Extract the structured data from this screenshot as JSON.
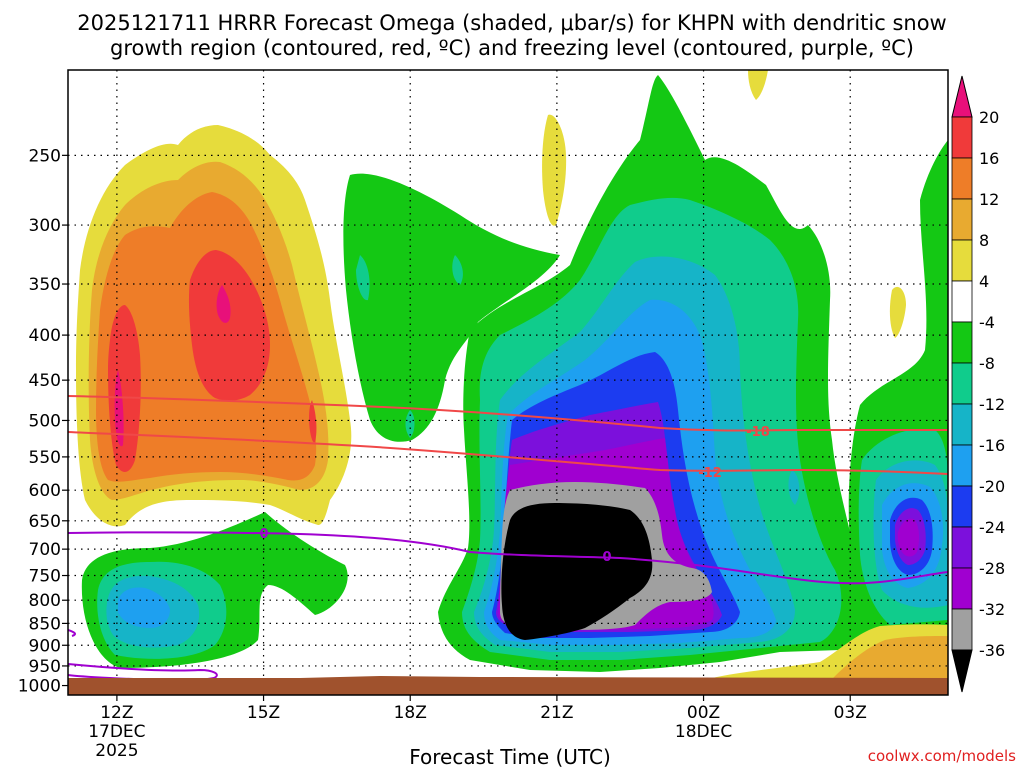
{
  "chart_data": {
    "type": "heatmap",
    "title_line1": "2025121711 HRRR Forecast Omega (shaded, μbar/s) for KHPN with dendritic snow",
    "title_line2": "growth region (contoured, red, ºC) and freezing level (contoured, purple, ºC)",
    "xlabel": "Forecast Time (UTC)",
    "credit": "coolwx.com/models",
    "x_ticks": [
      {
        "label": "12Z",
        "sub1": "17DEC",
        "sub2": "2025",
        "hour": 12
      },
      {
        "label": "15Z",
        "sub1": "",
        "sub2": "",
        "hour": 15
      },
      {
        "label": "18Z",
        "sub1": "",
        "sub2": "",
        "hour": 18
      },
      {
        "label": "21Z",
        "sub1": "",
        "sub2": "",
        "hour": 21
      },
      {
        "label": "00Z",
        "sub1": "18DEC",
        "sub2": "",
        "hour": 24
      },
      {
        "label": "03Z",
        "sub1": "",
        "sub2": "",
        "hour": 27
      }
    ],
    "x_range_hours": [
      11,
      29
    ],
    "y_ticks": [
      250,
      300,
      350,
      400,
      450,
      500,
      550,
      600,
      650,
      700,
      750,
      800,
      850,
      900,
      950,
      1000
    ],
    "y_range_hPa": [
      200,
      1025
    ],
    "y_scale": "log-pressure",
    "grid": "dotted",
    "colorbar_labels": [
      "20",
      "16",
      "12",
      "8",
      "4",
      "-4",
      "-8",
      "-12",
      "-16",
      "-20",
      "-24",
      "-28",
      "-32",
      "-36"
    ],
    "colorbar_colors": [
      "#e8107a",
      "#f03a3a",
      "#ee7d28",
      "#e8aa30",
      "#e6dc3c",
      "#ffffff",
      "#14c814",
      "#10cc8c",
      "#16b4c8",
      "#1ea0f0",
      "#1c3cf0",
      "#7c10dc",
      "#a000d0",
      "#a0a0a0",
      "#000000"
    ],
    "shading_colors": {
      "black": "#000000",
      "gray": "#a0a0a0",
      "purple": "#a000d0",
      "violet": "#7c10dc",
      "blue": "#1c3cf0",
      "azure": "#1ea0f0",
      "cyan": "#16b4c8",
      "teal": "#10cc8c",
      "green": "#14c814",
      "yellow": "#e6dc3c",
      "gold": "#e8aa30",
      "orange": "#ee7d28",
      "red": "#f03a3a",
      "magenta": "#e8107a",
      "ground": "#a0522d"
    },
    "contours": [
      {
        "label": "-18",
        "color": "#f04848"
      },
      {
        "label": "-12",
        "color": "#f04848"
      },
      {
        "label": "0",
        "color": "#a000d0"
      }
    ]
  }
}
